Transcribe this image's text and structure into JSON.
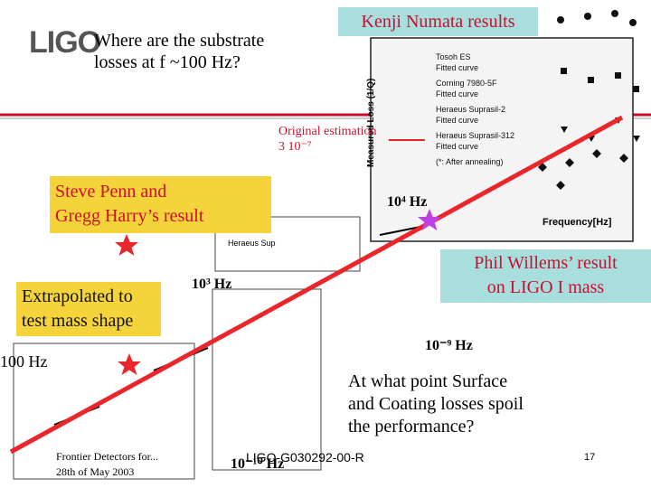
{
  "slide": {
    "logo": "LIGO",
    "question": [
      "Where are the substrate",
      "losses at f ~100 Hz?"
    ],
    "kenji": "Kenji Numata results",
    "original_estimation": [
      "Original estimation",
      "3 10⁻⁷"
    ],
    "penn": [
      "Steve Penn and",
      "Gregg Harry’s result"
    ],
    "f4": "10⁴ Hz",
    "willems": [
      "Phil Willems’ result",
      "on LIGO I mass"
    ],
    "extrapolated": [
      "Extrapolated to",
      "test mass shape"
    ],
    "f3": "10³ Hz",
    "f9": "10⁻⁹ Hz",
    "f100": "100 Hz",
    "coating": [
      "At what point Surface",
      "and Coating losses spoil",
      "the performance?"
    ],
    "footer": [
      "Frontier Detectors for...",
      "28th of May 2003"
    ],
    "f10": "10⁻¹⁰ Hz",
    "doc_id": "LIGO-G030292-00-R",
    "page": "17",
    "graph": {
      "y_label": "Measured Loss (1/Q)",
      "x_label": "Frequency[Hz]",
      "legend": [
        "Tosoh ES",
        "Fitted curve",
        "Corning 7980-5F",
        "Fitted curve",
        "Heraeus Suprasil-2",
        "Fitted curve",
        "Heraeus Suprasil-312",
        "Fitted curve",
        "(*: After annealing)"
      ],
      "lower_legend": "Heraeus Sup"
    }
  }
}
